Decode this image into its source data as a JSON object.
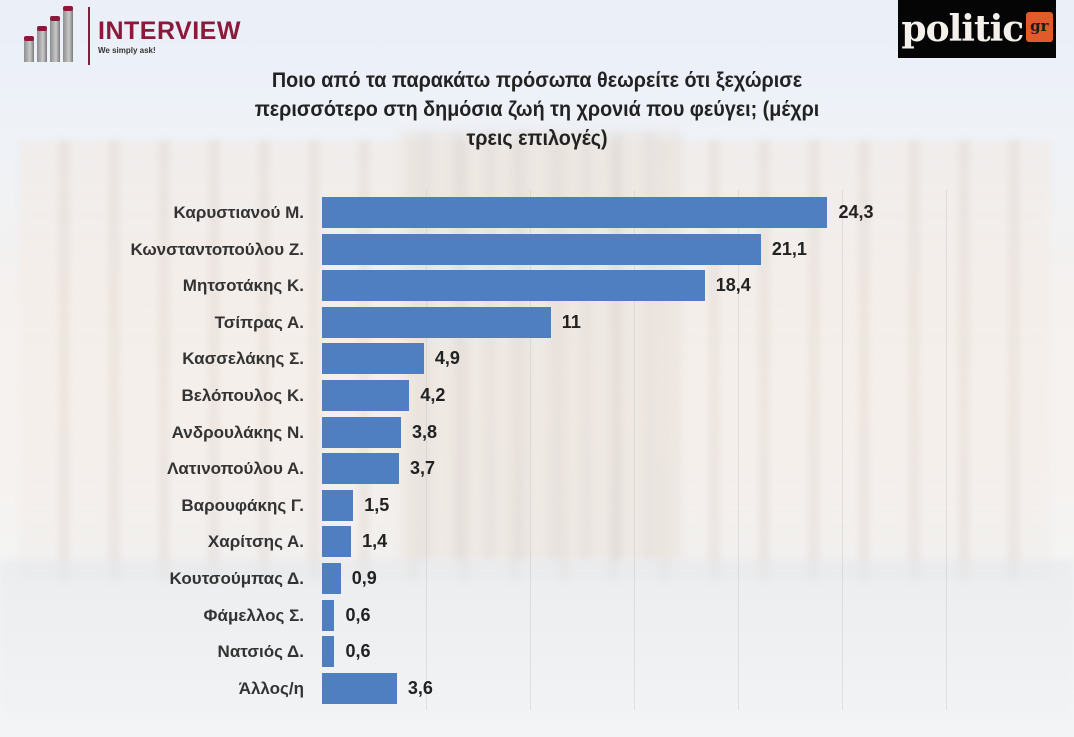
{
  "header": {
    "left_logo": {
      "name": "INTERVIEW",
      "tagline": "We simply ask!",
      "color": "#8b1a3a"
    },
    "right_logo": {
      "word": "politic",
      "suffix": "gr",
      "bg": "#050505",
      "accent": "#e2592b"
    }
  },
  "title_lines": [
    "Ποιο από τα παρακάτω πρόσωπα θεωρείτε ότι ξεχώρισε",
    "περισσότερο στη δημόσια ζωή τη χρονιά που φεύγει; (μέχρι",
    "τρεις επιλογές)"
  ],
  "chart_data": {
    "type": "bar",
    "orientation": "horizontal",
    "title": "Ποιο από τα παρακάτω πρόσωπα θεωρείτε ότι ξεχώρισε περισσότερο στη δημόσια ζωή τη χρονιά που φεύγει; (μέχρι τρεις επιλογές)",
    "xlabel": "",
    "ylabel": "",
    "bar_color": "#4f7fc0",
    "grid": true,
    "legend": false,
    "xlim": [
      0,
      30
    ],
    "categories": [
      "Καρυστιανού Μ.",
      "Κωνσταντοπούλου Ζ.",
      "Μητσοτάκης Κ.",
      "Τσίπρας Α.",
      "Κασσελάκης Σ.",
      "Βελόπουλος Κ.",
      "Ανδρουλάκης Ν.",
      "Λατινοπούλου Α.",
      "Βαρουφάκης Γ.",
      "Χαρίτσης Α.",
      "Κουτσούμπας Δ.",
      "Φάμελλος Σ.",
      "Νατσιός Δ.",
      "Άλλος/η"
    ],
    "values": [
      24.3,
      21.1,
      18.4,
      11,
      4.9,
      4.2,
      3.8,
      3.7,
      1.5,
      1.4,
      0.9,
      0.6,
      0.6,
      3.6
    ],
    "value_labels": [
      "24,3",
      "21,1",
      "18,4",
      "11",
      "4,9",
      "4,2",
      "3,8",
      "3,7",
      "1,5",
      "1,4",
      "0,9",
      "0,6",
      "0,6",
      "3,6"
    ]
  }
}
